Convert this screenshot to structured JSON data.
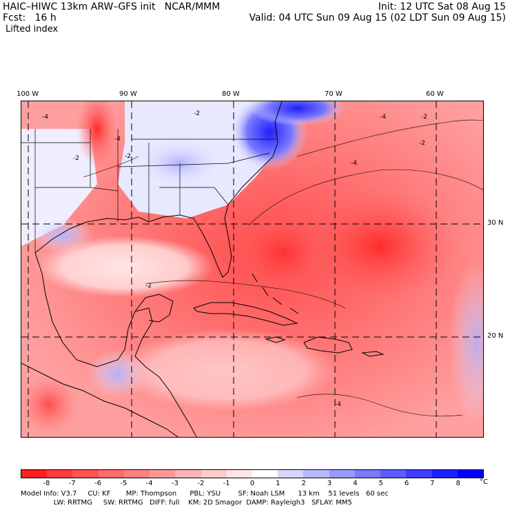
{
  "header": {
    "line1_left": "HAIC–HIWC 13km ARW–GFS init   NCAR/MMM",
    "line1_right": "Init: 12 UTC Sat 08 Aug 15",
    "line2_left": "Fcst:   16 h",
    "line2_right": "Valid: 04 UTC Sun 09 Aug 15 (02 LDT Sun 09 Aug 15)",
    "field": "Lifted index"
  },
  "axes": {
    "lon_labels": [
      "100 W",
      "90 W",
      "80 W",
      "70 W",
      "60 W"
    ],
    "lat_labels": [
      "30 N",
      "20 N"
    ]
  },
  "map": {
    "contour_labels": [
      "-4",
      "-4",
      "-2",
      "-2",
      "-4",
      "-2",
      "-2",
      "-4",
      "-2",
      "-2",
      "-4"
    ],
    "colors": {
      "land_border": "#000000",
      "grid": "#000000"
    }
  },
  "colorbar": {
    "unit": "°C",
    "labels": [
      "-8",
      "-7",
      "-6",
      "-5",
      "-4",
      "-3",
      "-2",
      "-1",
      "0",
      "1",
      "2",
      "3",
      "4",
      "5",
      "6",
      "7",
      "8"
    ],
    "colors": [
      "#ff1f1f",
      "#ff3a3a",
      "#ff5252",
      "#ff6a6a",
      "#ff8080",
      "#ff9999",
      "#ffb3b3",
      "#ffcccc",
      "#ffe6e6",
      "#ffffff",
      "#d6d6ff",
      "#b8b8ff",
      "#9999ff",
      "#7a7aff",
      "#5c5cff",
      "#3d3dff",
      "#1f1fff",
      "#0000ff"
    ]
  },
  "model_info": {
    "line1": "Model Info: V3.7     CU: KF       MP: Thompson      PBL: YSU        SF: Noah LSM      13 km    51 levels   60 sec",
    "line2": "               LW: RRTMG     SW: RRTMG   DIFF: full    KM: 2D Smagor  DAMP: Rayleigh3   SFLAY: MM5"
  }
}
